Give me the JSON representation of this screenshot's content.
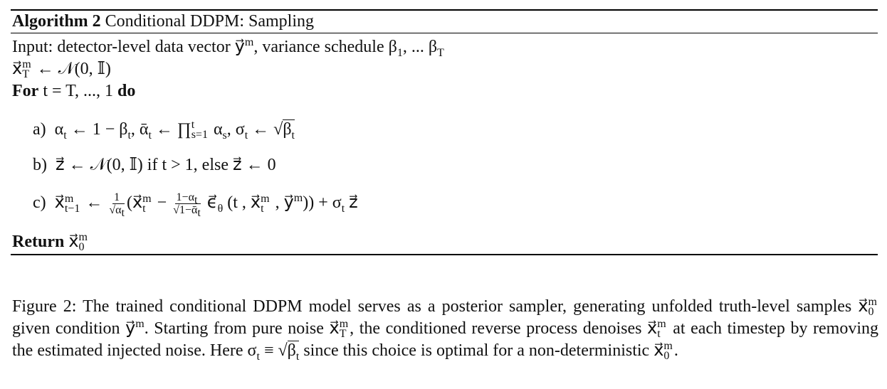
{
  "algorithm": {
    "label": "Algorithm 2",
    "title": "Conditional DDPM: Sampling",
    "input": [
      "Input: detector-level data vector ",
      "y⃗",
      "m",
      ", variance schedule β",
      "1",
      ", ... β",
      "T"
    ],
    "init": [
      "x⃗",
      "m",
      "T",
      " ← 𝒩(0, 𝕀)"
    ],
    "loop": [
      "For",
      " t = T, ..., 1 ",
      "do"
    ],
    "steps": [
      [
        "a)",
        "α",
        "t",
        " ← 1 − β",
        "t",
        ",  ᾱ",
        "t",
        " ← ∏",
        "t",
        "s=1",
        " α",
        "s",
        ",  σ",
        "t",
        " ← √",
        "β",
        "t"
      ],
      [
        "b)",
        "z⃗ ← 𝒩(0, 𝕀) if t > 1, else z⃗ ← 0"
      ],
      [
        "c)",
        "x⃗",
        "m",
        "t−1",
        " ← ",
        "1",
        "√",
        "α",
        "t",
        "(x⃗",
        "m",
        "t",
        " − ",
        "1−α",
        "t",
        "√",
        "1−ᾱ",
        "t",
        " ϵ⃗",
        "θ",
        " (t , x⃗",
        "m",
        "t",
        " , y⃗",
        "m",
        ")) + σ",
        "t",
        " z⃗"
      ]
    ],
    "return": [
      "Return",
      " x⃗",
      "m",
      "0"
    ]
  },
  "caption": [
    "Figure 2: The trained conditional DDPM model serves as a posterior sampler, generating unfolded truth-level samples x⃗",
    "m",
    "0",
    " given condition y⃗",
    "m",
    ". Starting from pure noise x⃗",
    "m",
    "T",
    ", the conditioned reverse process denoises x⃗",
    "m",
    "t",
    " at each timestep by removing the estimated injected noise. Here σ",
    "t",
    " ≡ √",
    "β",
    "t",
    " since this choice is optimal for a non-deterministic x⃗",
    "m",
    "0",
    "."
  ]
}
